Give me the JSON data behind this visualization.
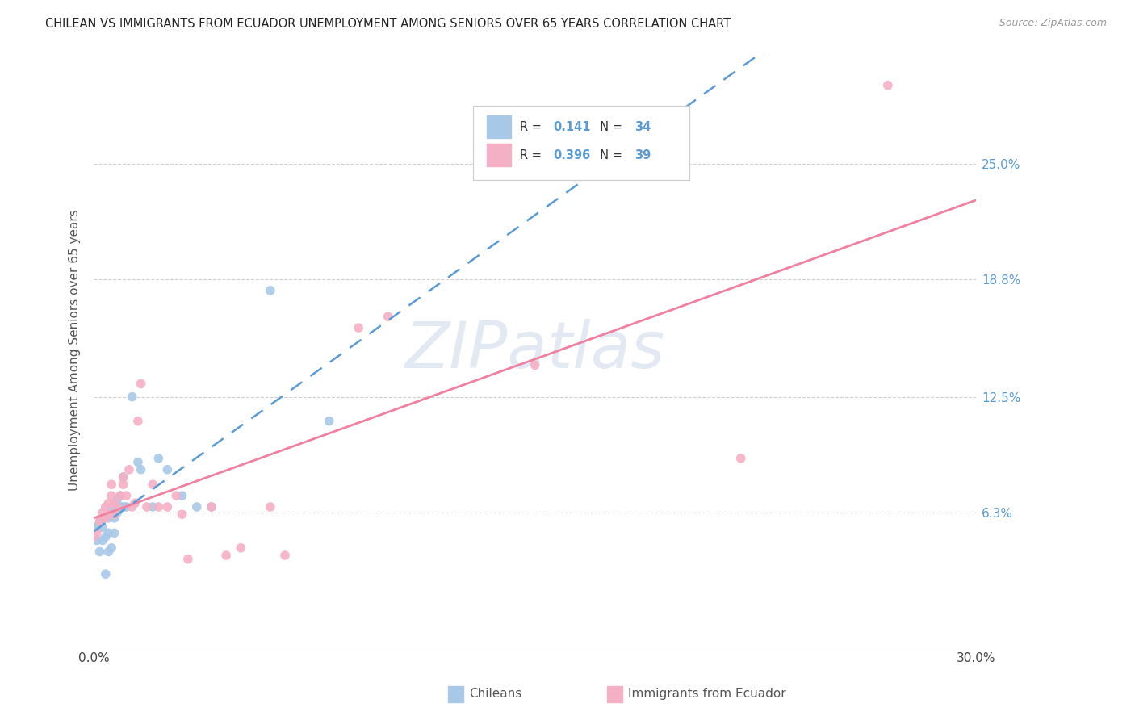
{
  "title": "CHILEAN VS IMMIGRANTS FROM ECUADOR UNEMPLOYMENT AMONG SENIORS OVER 65 YEARS CORRELATION CHART",
  "source": "Source: ZipAtlas.com",
  "ylabel": "Unemployment Among Seniors over 65 years",
  "xlim": [
    0.0,
    0.3
  ],
  "ylim": [
    -0.01,
    0.31
  ],
  "ytick_vals": [
    0.0,
    0.063,
    0.125,
    0.188,
    0.25
  ],
  "ytick_labels": [
    "",
    "6.3%",
    "12.5%",
    "18.8%",
    "25.0%"
  ],
  "background_color": "#ffffff",
  "chilean_color": "#a8c8e8",
  "ecuador_color": "#f4b0c4",
  "chilean_line_color": "#5b9bd5",
  "ecuador_line_color": "#f080a0",
  "R_chilean": "0.141",
  "N_chilean": "34",
  "R_ecuador": "0.396",
  "N_ecuador": "39",
  "ch_x": [
    0.0,
    0.001,
    0.001,
    0.002,
    0.002,
    0.003,
    0.003,
    0.004,
    0.004,
    0.005,
    0.005,
    0.005,
    0.006,
    0.006,
    0.007,
    0.007,
    0.008,
    0.008,
    0.009,
    0.009,
    0.01,
    0.01,
    0.011,
    0.013,
    0.015,
    0.016,
    0.02,
    0.022,
    0.025,
    0.03,
    0.035,
    0.04,
    0.06,
    0.08
  ],
  "ch_y": [
    0.055,
    0.048,
    0.055,
    0.042,
    0.058,
    0.048,
    0.055,
    0.03,
    0.05,
    0.042,
    0.052,
    0.06,
    0.044,
    0.064,
    0.052,
    0.06,
    0.063,
    0.07,
    0.066,
    0.072,
    0.066,
    0.082,
    0.066,
    0.125,
    0.09,
    0.086,
    0.066,
    0.092,
    0.086,
    0.072,
    0.066,
    0.066,
    0.182,
    0.112
  ],
  "ec_x": [
    0.0,
    0.001,
    0.002,
    0.003,
    0.004,
    0.004,
    0.005,
    0.005,
    0.006,
    0.006,
    0.007,
    0.007,
    0.008,
    0.009,
    0.01,
    0.01,
    0.011,
    0.012,
    0.013,
    0.014,
    0.015,
    0.016,
    0.018,
    0.02,
    0.022,
    0.025,
    0.028,
    0.03,
    0.032,
    0.04,
    0.045,
    0.05,
    0.06,
    0.065,
    0.09,
    0.1,
    0.15,
    0.22,
    0.27
  ],
  "ec_y": [
    0.05,
    0.052,
    0.058,
    0.063,
    0.06,
    0.066,
    0.062,
    0.068,
    0.072,
    0.078,
    0.062,
    0.068,
    0.066,
    0.072,
    0.078,
    0.082,
    0.072,
    0.086,
    0.066,
    0.068,
    0.112,
    0.132,
    0.066,
    0.078,
    0.066,
    0.066,
    0.072,
    0.062,
    0.038,
    0.066,
    0.04,
    0.044,
    0.066,
    0.04,
    0.162,
    0.168,
    0.142,
    0.092,
    0.292
  ]
}
